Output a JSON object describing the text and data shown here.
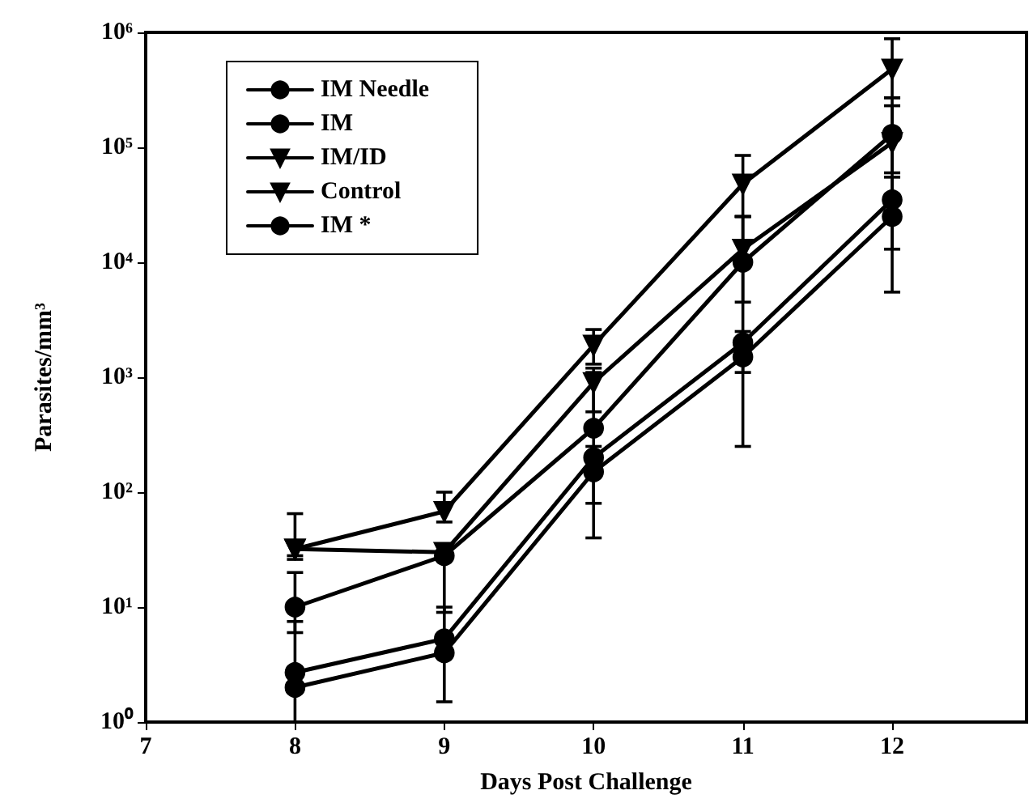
{
  "chart_data": {
    "type": "line",
    "xlabel": "Days Post Challenge",
    "ylabel": "Parasites/mm³",
    "log": "y",
    "xlim": [
      7,
      12.9
    ],
    "xticks": [
      7,
      8,
      9,
      10,
      11,
      12
    ],
    "ylim": [
      1,
      1000000
    ],
    "yticks": [
      {
        "value": 1,
        "label": "10⁰"
      },
      {
        "value": 10,
        "label": "10¹"
      },
      {
        "value": 100,
        "label": "10²"
      },
      {
        "value": 1000,
        "label": "10³"
      },
      {
        "value": 10000,
        "label": "10⁴"
      },
      {
        "value": 100000,
        "label": "10⁵"
      },
      {
        "value": 1000000,
        "label": "10⁶"
      }
    ],
    "x": [
      8,
      9,
      10,
      11,
      12
    ],
    "legend": "top left",
    "grid": false,
    "series": [
      {
        "name": "IM Needle",
        "color": "#000000",
        "marker": "circle",
        "line_style": "solid",
        "values": [
          10,
          28,
          360,
          10000,
          130000
        ],
        "errors": [
          [
            6,
            20
          ],
          [
            9,
            35
          ],
          [
            80,
            1100
          ],
          [
            250,
            25000
          ],
          [
            13000,
            230000
          ]
        ]
      },
      {
        "name": "IM",
        "color": "#000000",
        "marker": "circle",
        "line_style": "solid",
        "values": [
          2,
          4,
          150,
          1500,
          25000
        ],
        "errors": [
          null,
          [
            1.5,
            10
          ],
          [
            40,
            250
          ],
          [
            1100,
            2500
          ],
          [
            5500,
            55000
          ]
        ]
      },
      {
        "name": "IM/ID",
        "color": "#000000",
        "marker": "triangle_down",
        "line_style": "solid",
        "values": [
          32,
          30,
          900,
          13000,
          110000
        ],
        "errors": [
          [
            28,
            37
          ],
          null,
          [
            500,
            1200
          ],
          [
            4500,
            25000
          ],
          [
            60000,
            270000
          ]
        ]
      },
      {
        "name": "Control",
        "color": "#000000",
        "marker": "triangle_down",
        "line_style": "solid",
        "values": [
          32,
          68,
          1900,
          48000,
          480000
        ],
        "errors": [
          [
            26,
            65
          ],
          [
            55,
            100
          ],
          [
            1300,
            2600
          ],
          [
            25000,
            85000
          ],
          [
            270000,
            880000
          ]
        ]
      },
      {
        "name": "IM *",
        "color": "#000000",
        "marker": "circle",
        "line_style": "solid",
        "values": [
          2.7,
          5.3,
          200,
          2000,
          35000
        ],
        "errors": [
          [
            1,
            7.5
          ],
          null,
          null,
          null,
          null
        ]
      }
    ]
  }
}
